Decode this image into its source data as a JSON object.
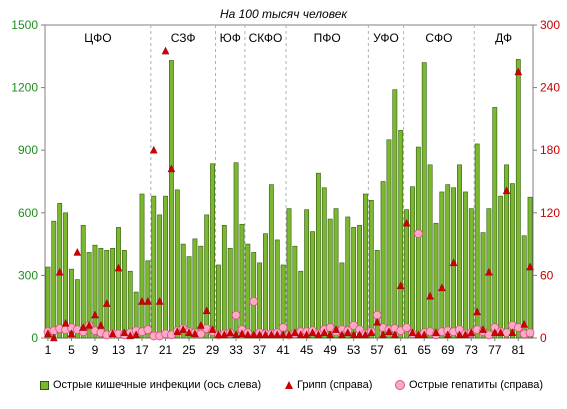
{
  "title": "На 100 тысяч человек",
  "legend": {
    "bars": "Острые кишечные инфекции (ось слева)",
    "flu": "Грипп (справа)",
    "hep": "Острые гепатиты (справа)"
  },
  "colors": {
    "bar_fill": "#7cb82f",
    "bar_stroke": "#2f5a0f",
    "flu": "#d10000",
    "hep_fill": "#ffa8c8",
    "hep_stroke": "#d1587a",
    "left_axis": "#1e8f1e",
    "right_axis": "#cc0000",
    "grid": "#b0b0b0"
  },
  "chart_data": {
    "type": "bar",
    "title": "На 100 тысяч человек",
    "xlabel": "",
    "ylabel_left": "",
    "ylabel_right": "",
    "x_ticks": [
      "1",
      "5",
      "9",
      "13",
      "17",
      "21",
      "25",
      "29",
      "33",
      "37",
      "41",
      "45",
      "49",
      "53",
      "57",
      "61",
      "65",
      "69",
      "73",
      "77",
      "81"
    ],
    "left_ticks": [
      "0",
      "300",
      "600",
      "900",
      "1200",
      "1500"
    ],
    "right_ticks": [
      "0",
      "60",
      "120",
      "180",
      "240",
      "300"
    ],
    "ylim_left": [
      0,
      1500
    ],
    "ylim_right": [
      0,
      300
    ],
    "grid": "vertical dashed at district boundaries",
    "legend_position": "bottom",
    "groups": [
      {
        "label": "ЦФО",
        "start": 1,
        "end": 18
      },
      {
        "label": "СЗФ",
        "start": 19,
        "end": 29
      },
      {
        "label": "ЮФ",
        "start": 30,
        "end": 34
      },
      {
        "label": "СКФО",
        "start": 35,
        "end": 41
      },
      {
        "label": "ПФО",
        "start": 42,
        "end": 55
      },
      {
        "label": "УФО",
        "start": 56,
        "end": 61
      },
      {
        "label": "СФО",
        "start": 62,
        "end": 73
      },
      {
        "label": "ДФ",
        "start": 74,
        "end": 83
      }
    ],
    "series": [
      {
        "name": "Острые кишечные инфекции (ось слева)",
        "axis": "left",
        "kind": "bar",
        "values": [
          340,
          560,
          645,
          600,
          330,
          280,
          540,
          410,
          445,
          430,
          420,
          430,
          530,
          420,
          320,
          220,
          690,
          370,
          680,
          590,
          680,
          1330,
          710,
          450,
          390,
          475,
          440,
          590,
          835,
          350,
          540,
          430,
          840,
          545,
          450,
          410,
          360,
          500,
          735,
          470,
          350,
          620,
          440,
          320,
          615,
          510,
          790,
          720,
          570,
          620,
          360,
          580,
          530,
          540,
          690,
          660,
          420,
          750,
          950,
          1190,
          995,
          615,
          725,
          915,
          1320,
          830,
          550,
          700,
          735,
          720,
          830,
          700,
          620,
          930,
          505,
          620,
          1105,
          680,
          830,
          740,
          1335,
          490,
          675
        ]
      },
      {
        "name": "Грипп (справа)",
        "axis": "right",
        "kind": "triangle",
        "values": [
          4,
          0,
          63,
          14,
          4,
          82,
          10,
          12,
          22,
          12,
          33,
          4,
          67,
          5,
          2,
          3,
          35,
          35,
          180,
          35,
          275,
          162,
          6,
          8,
          5,
          4,
          12,
          26,
          8,
          3,
          3,
          5,
          3,
          4,
          3,
          3,
          3,
          3,
          3,
          3,
          3,
          3,
          5,
          3,
          3,
          5,
          3,
          5,
          3,
          8,
          3,
          5,
          3,
          3,
          3,
          5,
          15,
          3,
          6,
          3,
          50,
          110,
          5,
          3,
          3,
          40,
          5,
          48,
          3,
          72,
          3,
          3,
          5,
          25,
          8,
          63,
          5,
          5,
          141,
          5,
          255,
          13,
          68
        ]
      },
      {
        "name": "Острые гепатиты (справа)",
        "axis": "right",
        "kind": "circle",
        "values": [
          6,
          7,
          9,
          8,
          10,
          8,
          6,
          12,
          7,
          5,
          3,
          4,
          4,
          3,
          5,
          7,
          6,
          8,
          2,
          2,
          4,
          3,
          7,
          9,
          6,
          5,
          4,
          9,
          6,
          3,
          4,
          5,
          22,
          8,
          5,
          35,
          5,
          4,
          4,
          5,
          10,
          3,
          4,
          6,
          6,
          7,
          4,
          8,
          10,
          6,
          8,
          7,
          12,
          8,
          4,
          6,
          22,
          10,
          8,
          9,
          7,
          10,
          4,
          100,
          5,
          6,
          3,
          6,
          7,
          6,
          8,
          4,
          5,
          8,
          6,
          3,
          10,
          6,
          5,
          12,
          10,
          4,
          5
        ]
      }
    ]
  }
}
